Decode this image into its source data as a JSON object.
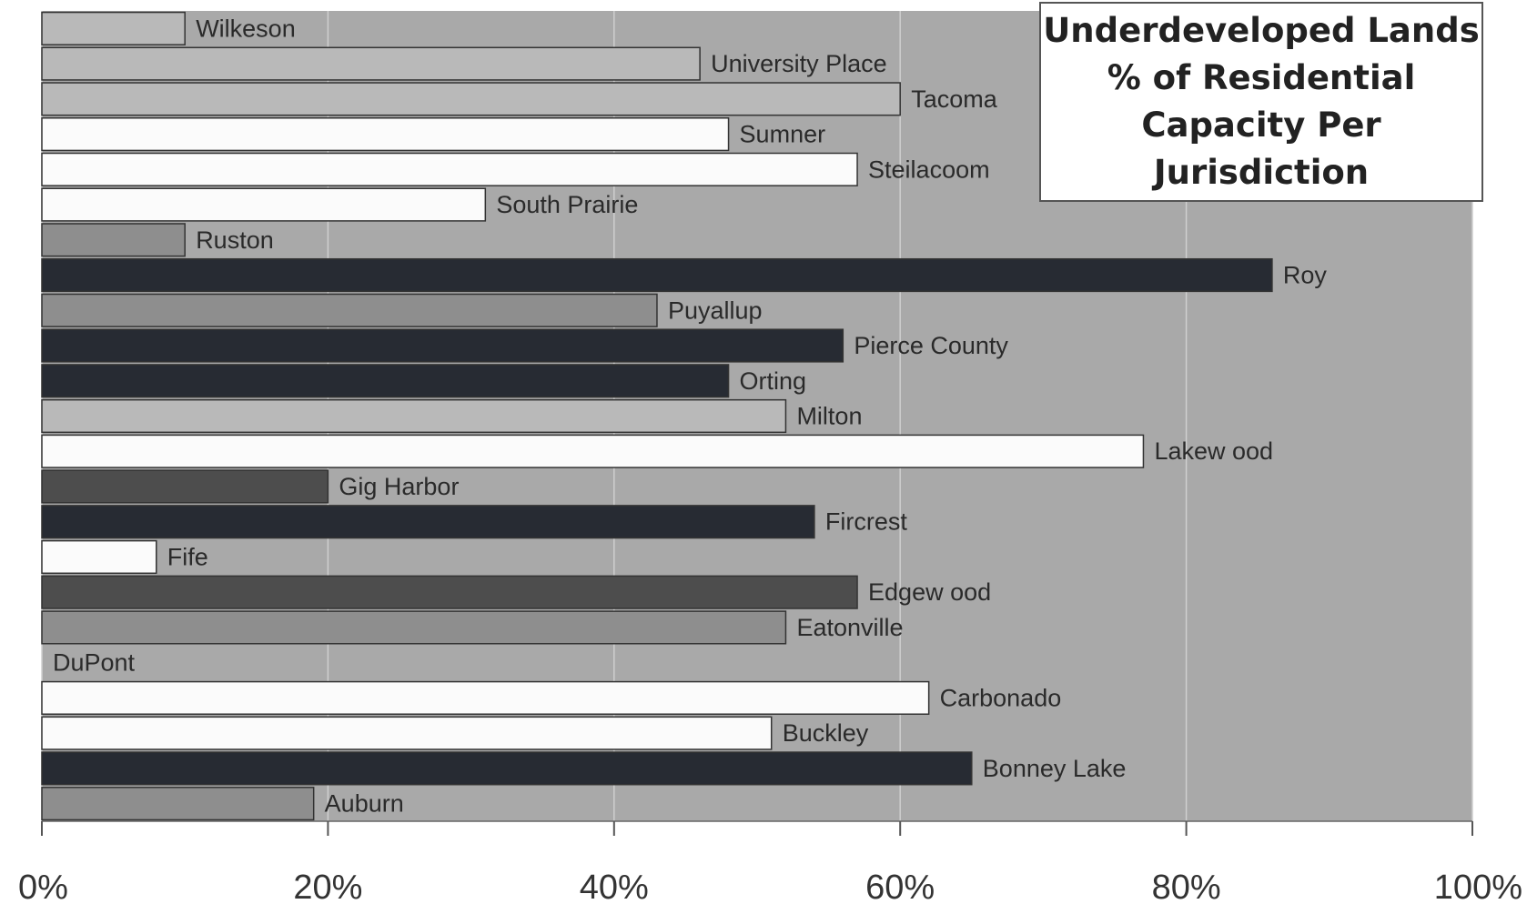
{
  "chart_data": {
    "type": "bar",
    "orientation": "horizontal",
    "title": [
      "Underdeveloped Lands",
      "% of Residential",
      "Capacity Per",
      "Jurisdiction"
    ],
    "xlim": [
      0,
      1
    ],
    "x_ticks": [
      "0%",
      "20%",
      "40%",
      "60%",
      "80%",
      "100%"
    ],
    "grid": true,
    "bars": [
      {
        "label": "Wilkeson",
        "value": 0.1,
        "fill": "light-gray"
      },
      {
        "label": "University Place",
        "value": 0.46,
        "fill": "light-gray"
      },
      {
        "label": "Tacoma",
        "value": 0.6,
        "fill": "light-gray"
      },
      {
        "label": "Sumner",
        "value": 0.48,
        "fill": "white"
      },
      {
        "label": "Steilacoom",
        "value": 0.57,
        "fill": "white"
      },
      {
        "label": "South Prairie",
        "value": 0.31,
        "fill": "white"
      },
      {
        "label": "Ruston",
        "value": 0.1,
        "fill": "gray"
      },
      {
        "label": "Roy",
        "value": 0.86,
        "fill": "black"
      },
      {
        "label": "Puyallup",
        "value": 0.43,
        "fill": "gray"
      },
      {
        "label": "Pierce County",
        "value": 0.56,
        "fill": "black"
      },
      {
        "label": "Orting",
        "value": 0.48,
        "fill": "black"
      },
      {
        "label": "Milton",
        "value": 0.52,
        "fill": "light-gray"
      },
      {
        "label": "Lakew ood",
        "value": 0.77,
        "fill": "white"
      },
      {
        "label": "Gig Harbor",
        "value": 0.2,
        "fill": "dark-gray"
      },
      {
        "label": "Fircrest",
        "value": 0.54,
        "fill": "black"
      },
      {
        "label": "Fife",
        "value": 0.08,
        "fill": "white"
      },
      {
        "label": "Edgew ood",
        "value": 0.57,
        "fill": "dark-gray"
      },
      {
        "label": "Eatonville",
        "value": 0.52,
        "fill": "gray"
      },
      {
        "label": "DuPont",
        "value": 0.0,
        "fill": "white"
      },
      {
        "label": "Carbonado",
        "value": 0.62,
        "fill": "white"
      },
      {
        "label": "Buckley",
        "value": 0.51,
        "fill": "white"
      },
      {
        "label": "Bonney Lake",
        "value": 0.65,
        "fill": "black"
      },
      {
        "label": "Auburn",
        "value": 0.19,
        "fill": "gray"
      }
    ]
  },
  "colors": {
    "plot_bg": "#a9a9a9",
    "white": "#fbfbfb",
    "light-gray": "#b9b9b9",
    "gray": "#8e8e8e",
    "dark-gray": "#4d4d4d",
    "black": "#272b33",
    "grid": "#cfcfcf",
    "text": "#2a2a2a"
  }
}
